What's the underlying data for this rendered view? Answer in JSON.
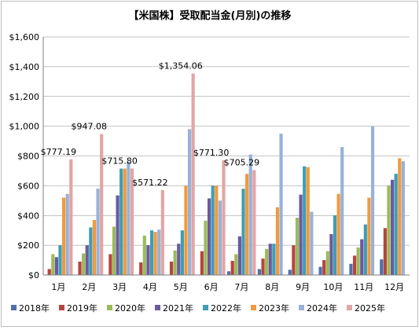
{
  "chart_data": {
    "type": "bar",
    "title": "【米国株】受取配当金(月別)の推移",
    "categories": [
      "1月",
      "2月",
      "3月",
      "4月",
      "5月",
      "6月",
      "7月",
      "8月",
      "9月",
      "10月",
      "11月",
      "12月"
    ],
    "ylim": [
      0,
      1600
    ],
    "yticks": [
      0,
      200,
      400,
      600,
      800,
      1000,
      1200,
      1400,
      1600
    ],
    "ytick_labels": [
      "$0",
      "$200",
      "$400",
      "$600",
      "$800",
      "$1,000",
      "$1,200",
      "$1,400",
      "$1,600"
    ],
    "grid": true,
    "legend_position": "bottom",
    "series": [
      {
        "name": "2018年",
        "color": "#4f6fad",
        "values": [
          0,
          0,
          0,
          0,
          0,
          0,
          25,
          40,
          35,
          55,
          75,
          105
        ]
      },
      {
        "name": "2019年",
        "color": "#b5453e",
        "values": [
          40,
          90,
          140,
          85,
          90,
          160,
          95,
          110,
          200,
          100,
          130,
          315
        ]
      },
      {
        "name": "2020年",
        "color": "#9bbb59",
        "values": [
          140,
          145,
          325,
          265,
          165,
          365,
          140,
          175,
          385,
          160,
          185,
          600
        ]
      },
      {
        "name": "2021年",
        "color": "#6b5a9e",
        "values": [
          120,
          200,
          535,
          200,
          210,
          515,
          260,
          210,
          540,
          275,
          240,
          640
        ]
      },
      {
        "name": "2022年",
        "color": "#3f9db5",
        "values": [
          200,
          320,
          715,
          300,
          300,
          600,
          580,
          210,
          730,
          400,
          340,
          680
        ]
      },
      {
        "name": "2023年",
        "color": "#f19a3e",
        "values": [
          520,
          370,
          715,
          290,
          600,
          600,
          680,
          455,
          725,
          545,
          520,
          785
        ]
      },
      {
        "name": "2024年",
        "color": "#98b2d8",
        "values": [
          545,
          580,
          760,
          305,
          980,
          500,
          810,
          950,
          425,
          860,
          1000,
          765
        ]
      },
      {
        "name": "2025年",
        "color": "#e3a5a5",
        "values": [
          777.19,
          947.08,
          715.8,
          571.22,
          1354.06,
          771.3,
          705.29,
          null,
          null,
          null,
          null,
          null
        ]
      }
    ],
    "annotations": [
      {
        "category": "1月",
        "text": "$777.19"
      },
      {
        "category": "2月",
        "text": "$947.08"
      },
      {
        "category": "3月",
        "text": "$715.80"
      },
      {
        "category": "4月",
        "text": "$571.22"
      },
      {
        "category": "5月",
        "text": "$1,354.06"
      },
      {
        "category": "6月",
        "text": "$771.30"
      },
      {
        "category": "7月",
        "text": "$705.29"
      }
    ]
  }
}
